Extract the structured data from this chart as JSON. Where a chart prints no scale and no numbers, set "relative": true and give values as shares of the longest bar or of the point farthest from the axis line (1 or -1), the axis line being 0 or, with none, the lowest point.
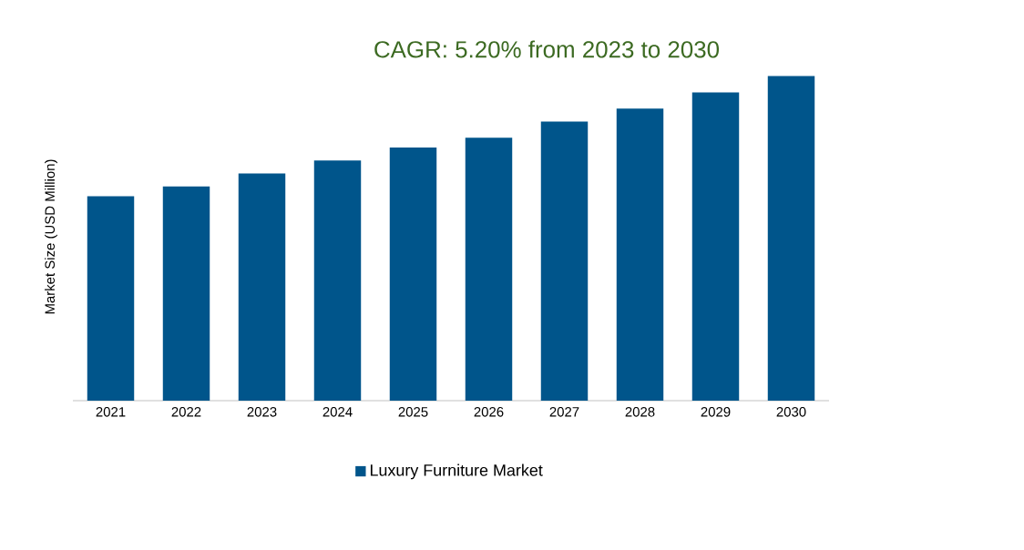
{
  "chart_data": {
    "type": "bar",
    "title": "CAGR: 5.20% from 2023 to 2030",
    "ylabel": "Market Size (USD Million)",
    "categories": [
      "2021",
      "2022",
      "2023",
      "2024",
      "2025",
      "2026",
      "2027",
      "2028",
      "2029",
      "2030"
    ],
    "relative": true,
    "series": [
      {
        "name": "Luxury Furniture Market",
        "color": "#00558b",
        "values": [
          0.63,
          0.66,
          0.7,
          0.74,
          0.78,
          0.81,
          0.86,
          0.9,
          0.95,
          1.0
        ]
      }
    ],
    "legend": "bottom"
  }
}
